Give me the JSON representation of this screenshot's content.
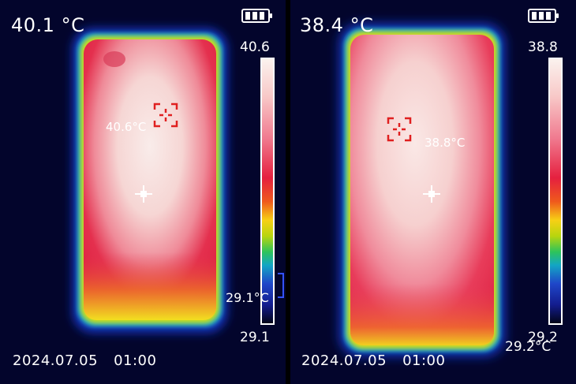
{
  "colors": {
    "background": "#03052c",
    "hot": "#f7dada",
    "warm": "#e8304f",
    "mid": "#f7d015",
    "cool": "#1f47c9",
    "marker": "#e02020"
  },
  "left": {
    "center_temp": "40.1 °C",
    "scale_max": "40.6",
    "scale_min": "29.1",
    "hot_spot_label": "40.6°C",
    "cold_spot_label": "29.1°C",
    "date": "2024.07.05",
    "time": "01:00",
    "icons": [
      "battery-icon",
      "center-crosshair-icon",
      "hot-spot-marker-icon",
      "cold-spot-marker-icon"
    ]
  },
  "right": {
    "center_temp": "38.4 °C",
    "scale_max": "38.8",
    "scale_min": "29.2",
    "hot_spot_label": "38.8°C",
    "cold_spot_label": "29.2°C",
    "date": "2024.07.05",
    "time": "01:00",
    "icons": [
      "battery-icon",
      "center-crosshair-icon",
      "hot-spot-marker-icon"
    ]
  }
}
